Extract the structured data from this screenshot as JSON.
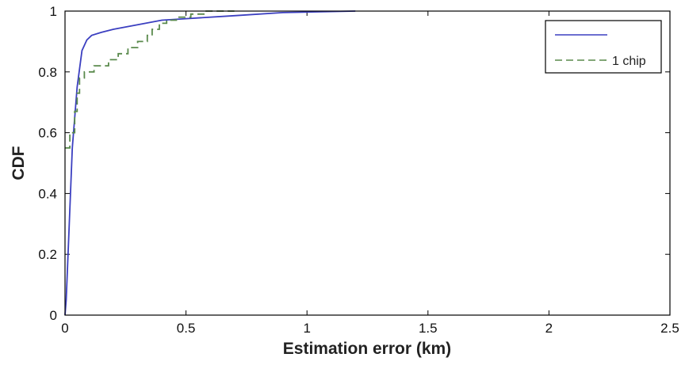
{
  "chart_data": {
    "type": "line",
    "title": "",
    "xlabel": "Estimation error (km)",
    "ylabel": "CDF",
    "xlim": [
      0,
      2.5
    ],
    "ylim": [
      0,
      1
    ],
    "xticks": [
      0,
      0.5,
      1,
      1.5,
      2,
      2.5
    ],
    "xtick_labels": [
      "0",
      "0.5",
      "1",
      "1.5",
      "2",
      "2.5"
    ],
    "yticks": [
      0,
      0.2,
      0.4,
      0.6,
      0.8,
      1
    ],
    "ytick_labels": [
      "0",
      "0.2",
      "0.4",
      "0.6",
      "0.8",
      "1"
    ],
    "grid": false,
    "legend_position": "top-right",
    "series": [
      {
        "name": "",
        "color": "#3b3fc0",
        "style": "solid",
        "x": [
          0,
          0.005,
          0.015,
          0.03,
          0.05,
          0.07,
          0.09,
          0.11,
          0.15,
          0.2,
          0.3,
          0.4,
          0.5,
          0.7,
          0.9,
          1.2
        ],
        "y": [
          0,
          0.05,
          0.25,
          0.55,
          0.75,
          0.87,
          0.905,
          0.92,
          0.93,
          0.94,
          0.955,
          0.97,
          0.975,
          0.985,
          0.995,
          1.0
        ]
      },
      {
        "name": "1 chip",
        "color": "#5a8a4c",
        "style": "dashed",
        "x": [
          0,
          0.02,
          0.02,
          0.04,
          0.04,
          0.05,
          0.05,
          0.06,
          0.06,
          0.08,
          0.08,
          0.12,
          0.12,
          0.18,
          0.18,
          0.22,
          0.22,
          0.26,
          0.26,
          0.3,
          0.3,
          0.34,
          0.34,
          0.36,
          0.36,
          0.39,
          0.39,
          0.42,
          0.42,
          0.46,
          0.46,
          0.52,
          0.52,
          0.58,
          0.58,
          0.7
        ],
        "y": [
          0.55,
          0.55,
          0.6,
          0.6,
          0.67,
          0.67,
          0.73,
          0.73,
          0.78,
          0.78,
          0.8,
          0.8,
          0.82,
          0.82,
          0.84,
          0.84,
          0.86,
          0.86,
          0.88,
          0.88,
          0.9,
          0.9,
          0.92,
          0.92,
          0.94,
          0.94,
          0.96,
          0.96,
          0.97,
          0.97,
          0.98,
          0.98,
          0.99,
          0.99,
          1.0,
          1.0
        ]
      }
    ]
  }
}
